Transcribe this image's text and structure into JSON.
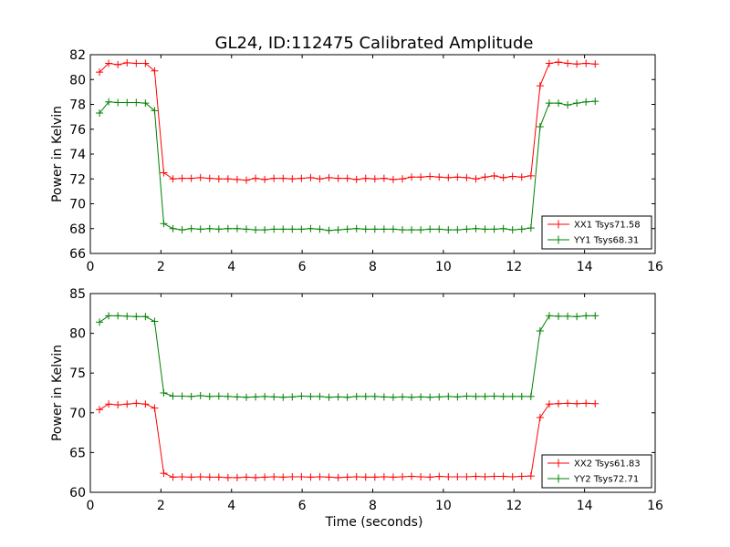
{
  "figure": {
    "title": "GL24, ID:112475 Calibrated Amplitude"
  },
  "chart_data": [
    {
      "type": "line",
      "title": "GL24, ID:112475 Calibrated Amplitude",
      "xlabel": "",
      "ylabel": "Power in Kelvin",
      "xlim": [
        0,
        16
      ],
      "ylim": [
        66,
        82
      ],
      "xticks": [
        "0",
        "2",
        "4",
        "6",
        "8",
        "10",
        "12",
        "14",
        "16"
      ],
      "yticks": [
        "66",
        "68",
        "70",
        "72",
        "74",
        "76",
        "78",
        "80",
        "82"
      ],
      "grid": false,
      "legend_position": "lower-right",
      "x": [
        0.26,
        0.52,
        0.78,
        1.04,
        1.3,
        1.56,
        1.82,
        2.08,
        2.34,
        2.6,
        2.86,
        3.12,
        3.38,
        3.64,
        3.9,
        4.16,
        4.42,
        4.68,
        4.94,
        5.2,
        5.46,
        5.72,
        5.98,
        6.24,
        6.5,
        6.76,
        7.02,
        7.28,
        7.54,
        7.8,
        8.06,
        8.32,
        8.58,
        8.84,
        9.1,
        9.36,
        9.62,
        9.88,
        10.14,
        10.4,
        10.66,
        10.92,
        11.18,
        11.44,
        11.7,
        11.96,
        12.22,
        12.48,
        12.74,
        13.0,
        13.26,
        13.52,
        13.78,
        14.04,
        14.3
      ],
      "series": [
        {
          "name": "XX1 Tsys71.58",
          "color": "#ff0000",
          "values": [
            80.6,
            81.3,
            81.2,
            81.35,
            81.3,
            81.3,
            80.7,
            72.5,
            72.0,
            72.05,
            72.05,
            72.1,
            72.05,
            72.0,
            72.0,
            71.95,
            71.9,
            72.05,
            71.95,
            72.05,
            72.05,
            72.0,
            72.05,
            72.1,
            72.0,
            72.1,
            72.05,
            72.05,
            71.95,
            72.05,
            72.0,
            72.05,
            71.95,
            72.0,
            72.15,
            72.15,
            72.2,
            72.15,
            72.1,
            72.15,
            72.1,
            72.0,
            72.15,
            72.25,
            72.1,
            72.2,
            72.15,
            72.25,
            79.5,
            81.3,
            81.4,
            81.3,
            81.25,
            81.3,
            81.25
          ]
        },
        {
          "name": "YY1 Tsys68.31",
          "color": "#008000",
          "values": [
            77.3,
            78.2,
            78.15,
            78.15,
            78.15,
            78.1,
            77.5,
            68.4,
            68.0,
            67.9,
            68.0,
            67.95,
            68.0,
            67.95,
            68.0,
            68.0,
            67.95,
            67.9,
            67.9,
            67.95,
            67.95,
            67.95,
            67.95,
            68.0,
            67.95,
            67.85,
            67.9,
            67.95,
            68.0,
            67.95,
            67.95,
            67.95,
            67.95,
            67.9,
            67.9,
            67.9,
            67.95,
            67.95,
            67.9,
            67.9,
            67.95,
            68.0,
            67.95,
            67.95,
            68.0,
            67.9,
            67.95,
            68.05,
            76.2,
            78.1,
            78.1,
            77.95,
            78.1,
            78.2,
            78.25
          ]
        }
      ]
    },
    {
      "type": "line",
      "title": "",
      "xlabel": "Time (seconds)",
      "ylabel": "Power in Kelvin",
      "xlim": [
        0,
        16
      ],
      "ylim": [
        60,
        85
      ],
      "xticks": [
        "0",
        "2",
        "4",
        "6",
        "8",
        "10",
        "12",
        "14",
        "16"
      ],
      "yticks": [
        "60",
        "65",
        "70",
        "75",
        "80",
        "85"
      ],
      "grid": false,
      "legend_position": "lower-right",
      "x": [
        0.26,
        0.52,
        0.78,
        1.04,
        1.3,
        1.56,
        1.82,
        2.08,
        2.34,
        2.6,
        2.86,
        3.12,
        3.38,
        3.64,
        3.9,
        4.16,
        4.42,
        4.68,
        4.94,
        5.2,
        5.46,
        5.72,
        5.98,
        6.24,
        6.5,
        6.76,
        7.02,
        7.28,
        7.54,
        7.8,
        8.06,
        8.32,
        8.58,
        8.84,
        9.1,
        9.36,
        9.62,
        9.88,
        10.14,
        10.4,
        10.66,
        10.92,
        11.18,
        11.44,
        11.7,
        11.96,
        12.22,
        12.48,
        12.74,
        13.0,
        13.26,
        13.52,
        13.78,
        14.04,
        14.3
      ],
      "series": [
        {
          "name": "XX2 Tsys61.83",
          "color": "#ff0000",
          "values": [
            70.4,
            71.1,
            71.0,
            71.1,
            71.2,
            71.1,
            70.6,
            62.4,
            61.9,
            61.95,
            61.9,
            61.95,
            61.9,
            61.9,
            61.85,
            61.85,
            61.9,
            61.85,
            61.9,
            61.95,
            61.9,
            61.95,
            61.95,
            61.9,
            61.95,
            61.9,
            61.85,
            61.9,
            61.95,
            61.9,
            61.9,
            61.95,
            61.9,
            61.95,
            62.0,
            61.95,
            61.9,
            62.0,
            61.95,
            61.95,
            61.95,
            62.0,
            61.95,
            62.0,
            62.0,
            61.95,
            62.0,
            62.05,
            69.4,
            71.1,
            71.15,
            71.2,
            71.15,
            71.2,
            71.15
          ]
        },
        {
          "name": "YY2 Tsys72.71",
          "color": "#008000",
          "values": [
            81.4,
            82.2,
            82.2,
            82.15,
            82.1,
            82.1,
            81.5,
            72.5,
            72.1,
            72.1,
            72.05,
            72.15,
            72.05,
            72.1,
            72.05,
            72.0,
            71.95,
            72.0,
            72.05,
            72.0,
            71.95,
            72.0,
            72.1,
            72.05,
            72.05,
            71.95,
            72.0,
            71.95,
            72.05,
            72.05,
            72.05,
            72.0,
            71.95,
            72.0,
            71.95,
            72.0,
            71.95,
            72.0,
            72.05,
            72.0,
            72.1,
            72.05,
            72.05,
            72.1,
            72.05,
            72.05,
            72.05,
            72.05,
            80.3,
            82.2,
            82.15,
            82.15,
            82.1,
            82.2,
            82.2
          ]
        }
      ]
    }
  ]
}
